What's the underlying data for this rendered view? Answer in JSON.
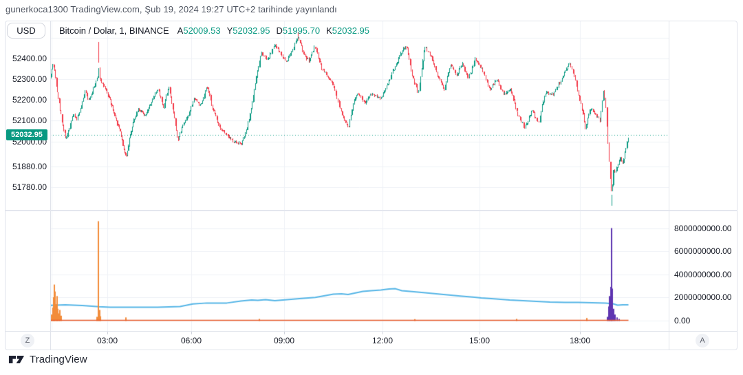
{
  "header": {
    "published_line": "gunerkoca1300 TradingView.com, Şub 19, 2024 19:27 UTC+2 tarihinde yayınlandı"
  },
  "left_axis": {
    "currency_button_label": "USD",
    "ticks": [
      {
        "label": "52400.00",
        "price": 52400
      },
      {
        "label": "52300.00",
        "price": 52300
      },
      {
        "label": "52200.00",
        "price": 52200
      },
      {
        "label": "52100.00",
        "price": 52100
      },
      {
        "label": "52000.00",
        "price": 52000
      },
      {
        "label": "51880.00",
        "price": 51880
      },
      {
        "label": "51780.00",
        "price": 51780
      }
    ],
    "last_price_badge": "52032.95"
  },
  "legend": {
    "symbol_title": "Bitcoin / Dolar, 1, BINANCE",
    "ohlc_pairs": [
      {
        "k": "A",
        "v": "52009.53"
      },
      {
        "k": "Y",
        "v": "52032.95"
      },
      {
        "k": "D",
        "v": "51995.70"
      },
      {
        "k": "K",
        "v": "52032.95"
      }
    ]
  },
  "right_axis": {
    "ticks": [
      {
        "label": "8000000000.00",
        "billions": 8
      },
      {
        "label": "6000000000.00",
        "billions": 6
      },
      {
        "label": "4000000000.00",
        "billions": 4
      },
      {
        "label": "2000000000.00",
        "billions": 2
      },
      {
        "label": "0.00",
        "billions": 0
      }
    ]
  },
  "time_axis": {
    "labels": [
      {
        "label": "03:00",
        "hour": 3
      },
      {
        "label": "06:00",
        "hour": 6
      },
      {
        "label": "09:00",
        "hour": 9
      },
      {
        "label": "12:00",
        "hour": 12
      },
      {
        "label": "15:00",
        "hour": 15
      },
      {
        "label": "18:00",
        "hour": 18
      }
    ],
    "timezone_button_label": "Z",
    "autoscale_button_label": "A"
  },
  "footer": {
    "brand": "TradingView"
  },
  "colors": {
    "up": "#089981",
    "down": "#f23645",
    "accent_teal": "#089981",
    "blue_line": "#55b5e6",
    "orange": "#f28c3a",
    "orange_line": "#e95b2a",
    "purple": "#5e35b1",
    "grid": "#eef1f6",
    "axis_border": "#e0e3eb",
    "text_dark": "#131722"
  },
  "chart_data": {
    "type": "candlestick",
    "symbol": "Bitcoin / Dolar",
    "interval": "1",
    "exchange": "BINANCE",
    "open": 52009.53,
    "high": 52032.95,
    "low": 51995.7,
    "close": 52032.95,
    "last_price": 52032.95,
    "x_axis": {
      "unit": "hour",
      "visible_range": [
        0.96,
        19.42
      ],
      "gridline_hours": [
        3,
        6,
        9,
        12,
        15,
        18
      ],
      "tick_labels": [
        "03:00",
        "06:00",
        "09:00",
        "12:00",
        "15:00",
        "18:00"
      ]
    },
    "price_pane": {
      "ylim": [
        51660,
        52540
      ],
      "gridline_prices": [
        52500,
        52400,
        52300,
        52200,
        52100,
        52000,
        51880,
        51780
      ],
      "path_anchors_hour_price": [
        [
          0.96,
          52310
        ],
        [
          1.05,
          52380
        ],
        [
          1.12,
          52330
        ],
        [
          1.25,
          52200
        ],
        [
          1.4,
          52080
        ],
        [
          1.52,
          52010
        ],
        [
          1.62,
          52060
        ],
        [
          1.75,
          52130
        ],
        [
          1.9,
          52110
        ],
        [
          2.05,
          52160
        ],
        [
          2.2,
          52250
        ],
        [
          2.33,
          52195
        ],
        [
          2.5,
          52260
        ],
        [
          2.62,
          52300
        ],
        [
          2.66,
          52310
        ],
        [
          2.68,
          52380
        ],
        [
          2.71,
          52310
        ],
        [
          2.85,
          52270
        ],
        [
          3.05,
          52215
        ],
        [
          3.25,
          52120
        ],
        [
          3.45,
          52050
        ],
        [
          3.6,
          51950
        ],
        [
          3.68,
          51930
        ],
        [
          3.8,
          52030
        ],
        [
          3.95,
          52110
        ],
        [
          4.1,
          52160
        ],
        [
          4.35,
          52120
        ],
        [
          4.6,
          52200
        ],
        [
          4.8,
          52255
        ],
        [
          5.0,
          52165
        ],
        [
          5.18,
          52265
        ],
        [
          5.35,
          52150
        ],
        [
          5.52,
          52005
        ],
        [
          5.7,
          52085
        ],
        [
          5.9,
          52130
        ],
        [
          6.1,
          52210
        ],
        [
          6.3,
          52170
        ],
        [
          6.5,
          52265
        ],
        [
          6.7,
          52150
        ],
        [
          6.9,
          52075
        ],
        [
          7.1,
          52035
        ],
        [
          7.35,
          52000
        ],
        [
          7.6,
          51990
        ],
        [
          7.75,
          52040
        ],
        [
          7.9,
          52130
        ],
        [
          8.05,
          52270
        ],
        [
          8.25,
          52430
        ],
        [
          8.45,
          52395
        ],
        [
          8.68,
          52465
        ],
        [
          8.85,
          52430
        ],
        [
          9.05,
          52385
        ],
        [
          9.25,
          52445
        ],
        [
          9.42,
          52505
        ],
        [
          9.58,
          52420
        ],
        [
          9.75,
          52390
        ],
        [
          9.93,
          52460
        ],
        [
          10.15,
          52350
        ],
        [
          10.45,
          52280
        ],
        [
          10.7,
          52160
        ],
        [
          10.95,
          52060
        ],
        [
          11.08,
          52170
        ],
        [
          11.22,
          52240
        ],
        [
          11.45,
          52185
        ],
        [
          11.65,
          52230
        ],
        [
          11.95,
          52210
        ],
        [
          12.25,
          52315
        ],
        [
          12.55,
          52425
        ],
        [
          12.72,
          52460
        ],
        [
          12.93,
          52305
        ],
        [
          13.1,
          52230
        ],
        [
          13.3,
          52460
        ],
        [
          13.48,
          52415
        ],
        [
          13.7,
          52320
        ],
        [
          13.9,
          52250
        ],
        [
          14.1,
          52375
        ],
        [
          14.28,
          52320
        ],
        [
          14.45,
          52375
        ],
        [
          14.65,
          52300
        ],
        [
          14.85,
          52400
        ],
        [
          15.08,
          52345
        ],
        [
          15.3,
          52250
        ],
        [
          15.5,
          52300
        ],
        [
          15.72,
          52225
        ],
        [
          15.92,
          52250
        ],
        [
          16.15,
          52120
        ],
        [
          16.35,
          52065
        ],
        [
          16.55,
          52150
        ],
        [
          16.75,
          52085
        ],
        [
          16.95,
          52235
        ],
        [
          17.2,
          52230
        ],
        [
          17.42,
          52295
        ],
        [
          17.68,
          52375
        ],
        [
          17.85,
          52300
        ],
        [
          17.98,
          52205
        ],
        [
          18.06,
          52150
        ],
        [
          18.15,
          52068
        ],
        [
          18.3,
          52160
        ],
        [
          18.44,
          52130
        ],
        [
          18.58,
          52100
        ],
        [
          18.68,
          52245
        ],
        [
          18.74,
          52180
        ],
        [
          18.82,
          51960
        ],
        [
          18.88,
          51810
        ],
        [
          18.92,
          51745
        ],
        [
          18.97,
          51860
        ],
        [
          19.03,
          51845
        ],
        [
          19.1,
          51885
        ],
        [
          19.17,
          51925
        ],
        [
          19.24,
          51895
        ],
        [
          19.32,
          51955
        ],
        [
          19.42,
          52033
        ]
      ],
      "wick_spikes_hour_price_dir": [
        [
          2.68,
          52478,
          "down"
        ],
        [
          9.42,
          52525,
          "down"
        ],
        [
          18.92,
          51690,
          "up"
        ]
      ]
    },
    "volume_pane": {
      "ylim_billions": [
        0,
        9.2
      ],
      "gridline_billions": [
        8,
        6,
        4,
        2,
        0
      ],
      "orange_bars_hour_billions": [
        [
          1.02,
          0.5
        ],
        [
          1.05,
          1.1
        ],
        [
          1.08,
          2.0
        ],
        [
          1.11,
          3.1
        ],
        [
          1.14,
          2.5
        ],
        [
          1.17,
          1.4
        ],
        [
          1.2,
          2.1
        ],
        [
          1.23,
          1.0
        ],
        [
          1.27,
          0.6
        ],
        [
          1.31,
          0.9
        ],
        [
          1.36,
          0.4
        ],
        [
          2.62,
          0.3
        ],
        [
          2.68,
          8.6
        ],
        [
          2.72,
          0.9
        ],
        [
          2.76,
          0.35
        ],
        [
          3.66,
          0.25
        ],
        [
          8.2,
          0.12
        ],
        [
          13.0,
          0.1
        ],
        [
          16.1,
          0.12
        ],
        [
          18.2,
          0.2
        ]
      ],
      "purple_bars_hour_billions": [
        [
          18.8,
          0.3
        ],
        [
          18.84,
          1.2
        ],
        [
          18.87,
          2.1
        ],
        [
          18.9,
          2.9
        ],
        [
          18.92,
          8.0
        ],
        [
          18.95,
          2.75
        ],
        [
          18.98,
          1.0
        ],
        [
          19.02,
          0.5
        ],
        [
          19.08,
          0.25
        ],
        [
          19.15,
          0.12
        ]
      ],
      "blue_line_hour_billions": [
        [
          0.96,
          1.3
        ],
        [
          1.5,
          1.35
        ],
        [
          2.1,
          1.28
        ],
        [
          2.7,
          1.18
        ],
        [
          3.1,
          1.14
        ],
        [
          3.8,
          1.13
        ],
        [
          4.8,
          1.13
        ],
        [
          5.6,
          1.2
        ],
        [
          6.05,
          1.42
        ],
        [
          6.5,
          1.5
        ],
        [
          7.15,
          1.5
        ],
        [
          7.6,
          1.67
        ],
        [
          7.95,
          1.76
        ],
        [
          8.15,
          1.73
        ],
        [
          8.4,
          1.79
        ],
        [
          8.7,
          1.7
        ],
        [
          9.15,
          1.8
        ],
        [
          9.6,
          1.91
        ],
        [
          9.95,
          1.98
        ],
        [
          10.3,
          2.16
        ],
        [
          10.5,
          2.27
        ],
        [
          10.75,
          2.3
        ],
        [
          10.95,
          2.24
        ],
        [
          11.2,
          2.39
        ],
        [
          11.4,
          2.51
        ],
        [
          11.65,
          2.57
        ],
        [
          11.95,
          2.63
        ],
        [
          12.2,
          2.72
        ],
        [
          12.4,
          2.74
        ],
        [
          12.6,
          2.57
        ],
        [
          12.85,
          2.51
        ],
        [
          13.15,
          2.43
        ],
        [
          13.55,
          2.33
        ],
        [
          14.0,
          2.21
        ],
        [
          14.4,
          2.1
        ],
        [
          14.85,
          2.0
        ],
        [
          15.05,
          1.94
        ],
        [
          15.5,
          1.85
        ],
        [
          15.9,
          1.76
        ],
        [
          16.3,
          1.7
        ],
        [
          16.7,
          1.64
        ],
        [
          17.1,
          1.58
        ],
        [
          17.55,
          1.55
        ],
        [
          17.95,
          1.55
        ],
        [
          18.35,
          1.52
        ],
        [
          18.75,
          1.49
        ],
        [
          18.97,
          1.43
        ],
        [
          19.1,
          1.31
        ],
        [
          19.25,
          1.34
        ],
        [
          19.42,
          1.34
        ]
      ]
    }
  }
}
